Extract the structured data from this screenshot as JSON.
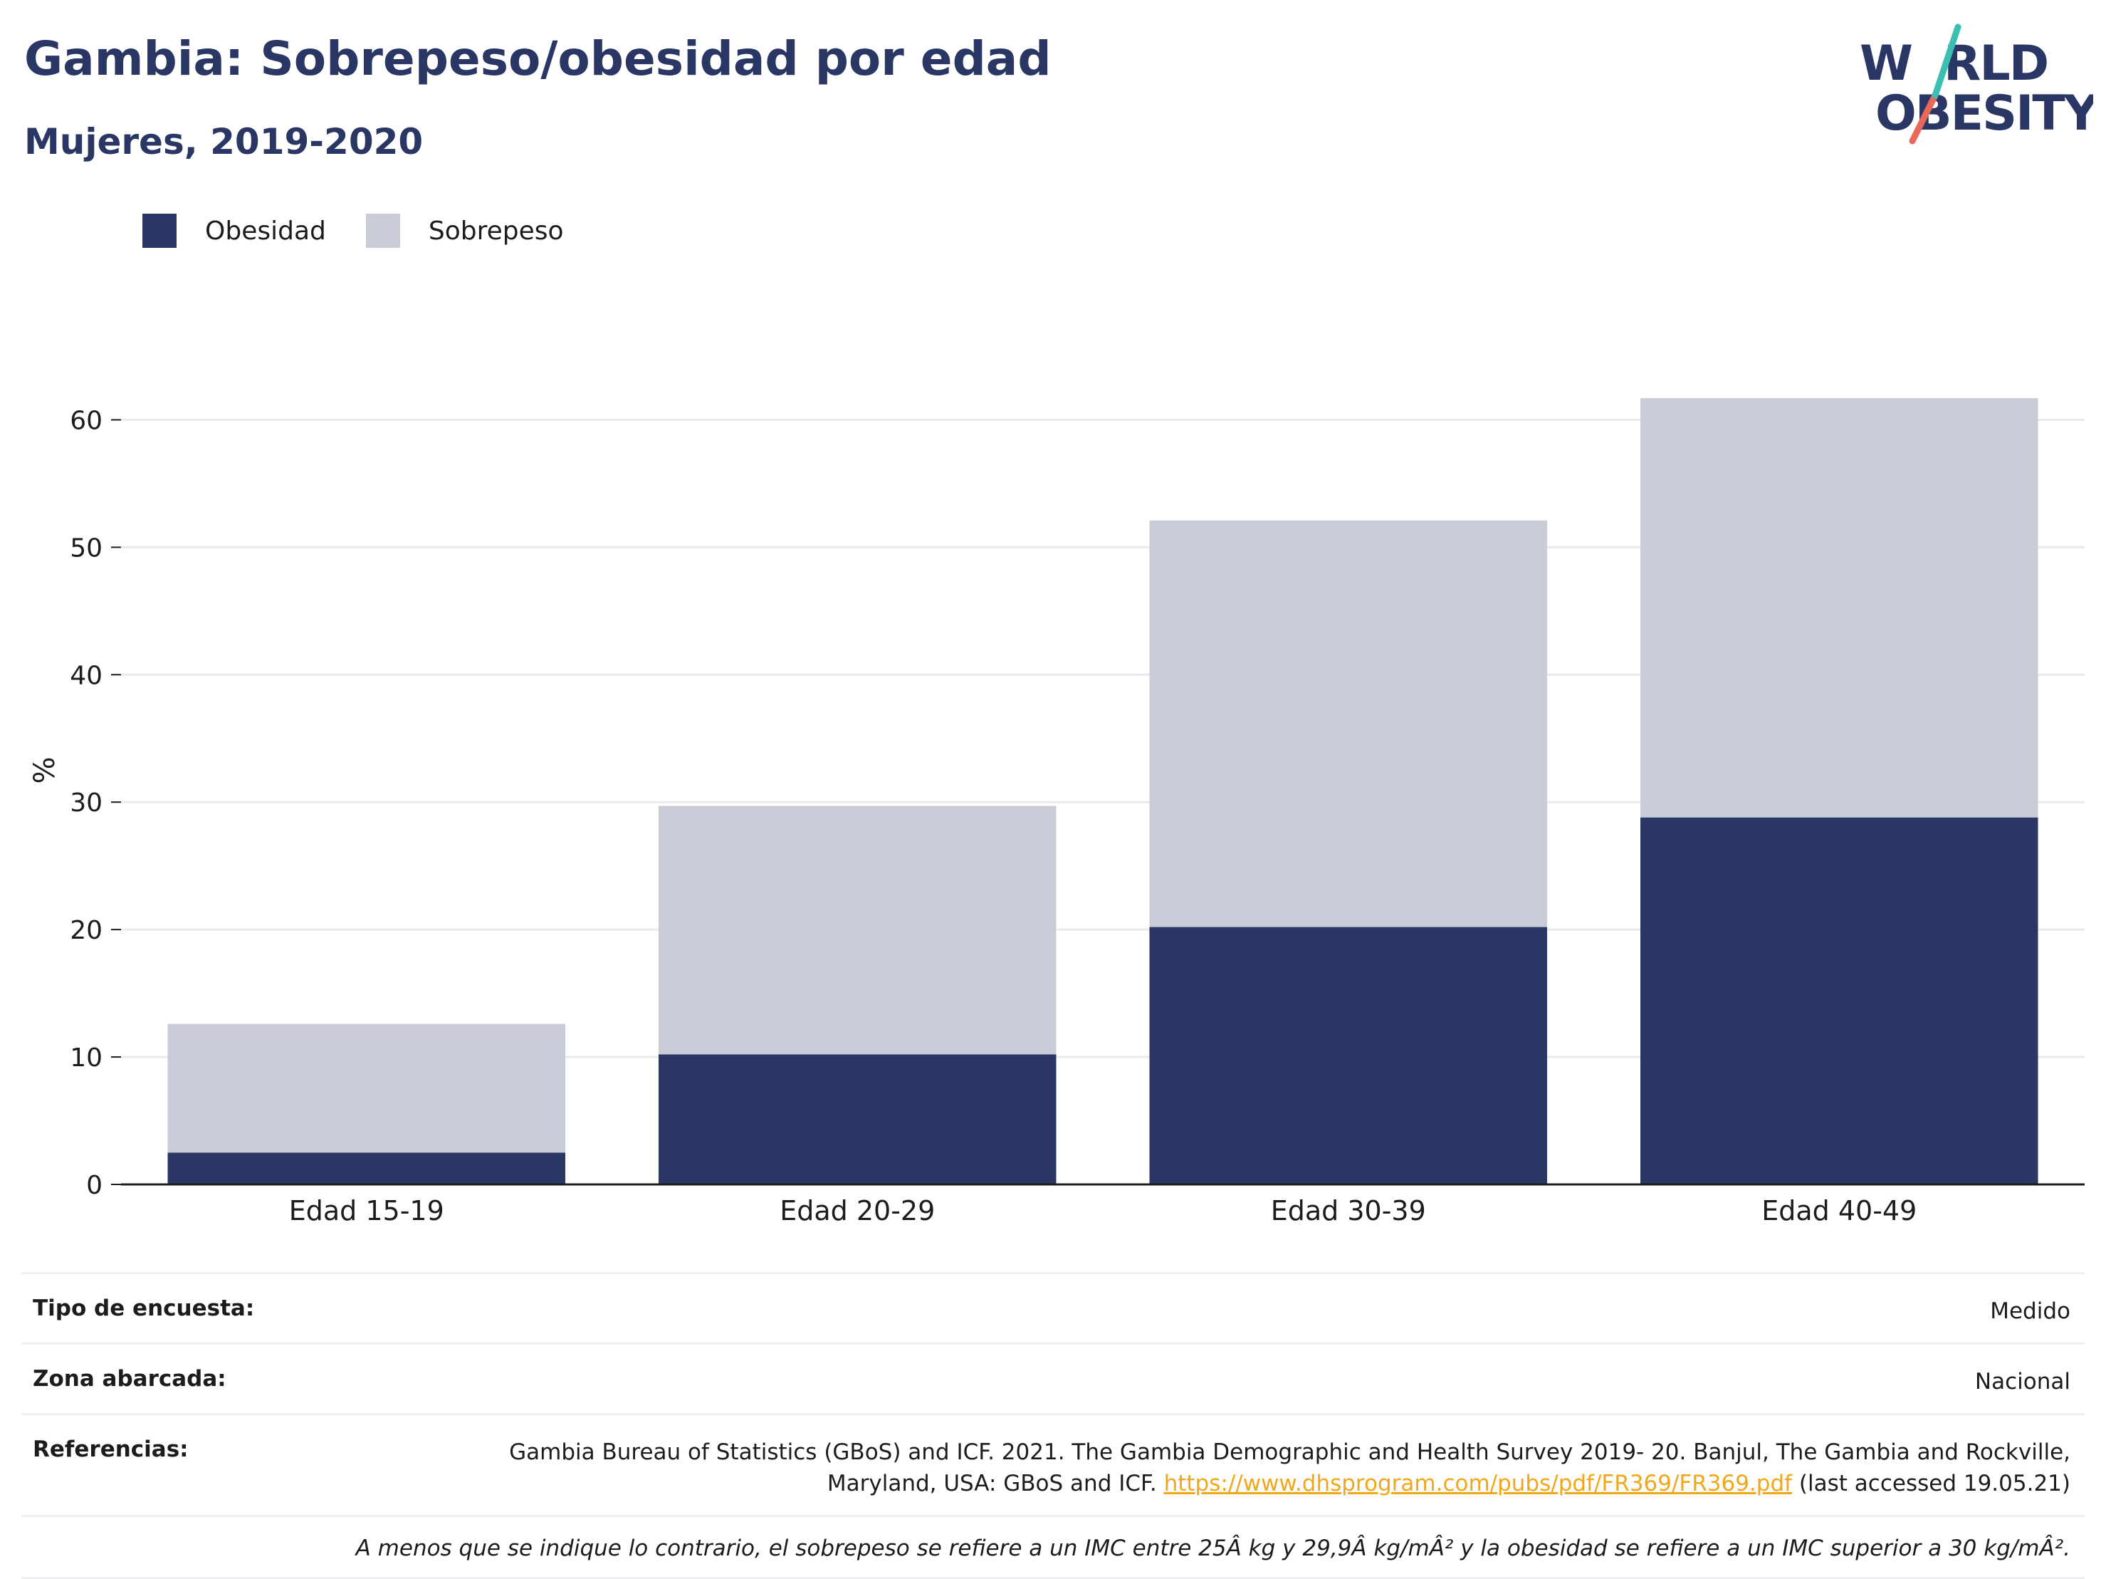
{
  "header": {
    "title": "Gambia: Sobrepeso/obesidad por edad",
    "subtitle": "Mujeres, 2019-2020"
  },
  "logo": {
    "line1": "W RLD",
    "line2": "OBESITY",
    "text": "WORLD OBESITY",
    "accent_teal": "#3bbfb2",
    "accent_red": "#e8695a"
  },
  "colors": {
    "obesity": "#2a3663",
    "overweight": "#c9cbd7",
    "axis": "#1c1c1c",
    "grid": "#e8eaef"
  },
  "chart_data": {
    "type": "bar",
    "stacked": true,
    "categories": [
      "Edad 15-19",
      "Edad 20-29",
      "Edad 30-39",
      "Edad 40-49"
    ],
    "series": [
      {
        "name": "Obesidad",
        "values": [
          2.5,
          10.2,
          20.2,
          28.8
        ]
      },
      {
        "name": "Sobrepeso",
        "values": [
          10.1,
          19.5,
          31.9,
          32.9
        ]
      }
    ],
    "ylabel": "%",
    "ylim": [
      0,
      65
    ],
    "yticks": [
      0,
      10,
      20,
      30,
      40,
      50,
      60
    ],
    "grid": true,
    "legend_position": "top-left"
  },
  "info": {
    "survey_type_label": "Tipo de encuesta:",
    "survey_type_value": "Medido",
    "area_label": "Zona abarcada:",
    "area_value": "Nacional",
    "references_label": "Referencias:",
    "references_text": "Gambia Bureau of Statistics (GBoS) and ICF. 2021. The Gambia Demographic and Health Survey 2019- 20. Banjul, The Gambia and Rockville, Maryland, USA: GBoS and ICF.",
    "references_link": "https://www.dhsprogram.com/pubs/pdf/FR369/FR369.pdf",
    "references_accessed": "(last accessed 19.05.21)",
    "note": "A menos que se indique lo contrario, el sobrepeso se refiere a un IMC entre 25Â kg y 29,9Â kg/mÂ² y la obesidad se refiere a un IMC superior a 30 kg/mÂ²."
  }
}
